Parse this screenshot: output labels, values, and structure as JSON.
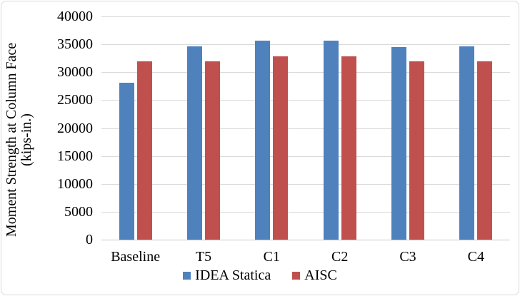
{
  "chart_data": {
    "type": "bar",
    "title": "",
    "categories": [
      "Baseline",
      "T5",
      "C1",
      "C2",
      "C3",
      "C4"
    ],
    "series": [
      {
        "name": "IDEA Statica",
        "color": "#4F81BD",
        "values": [
          28100,
          34600,
          35650,
          35650,
          34500,
          34650
        ]
      },
      {
        "name": "AISC",
        "color": "#C0504D",
        "values": [
          32000,
          32000,
          32900,
          32900,
          32000,
          32000
        ]
      }
    ],
    "xlabel": "",
    "ylabel": "Moment Strength at Column Face (kips-in.)",
    "ylabel_line1": "Moment Strength at Column Face",
    "ylabel_line2": "(kips-in.)",
    "ylim": [
      0,
      40000
    ],
    "ytick_step": 5000,
    "ytick_labels": [
      "0",
      "5000",
      "10000",
      "15000",
      "20000",
      "25000",
      "30000",
      "35000",
      "40000"
    ],
    "grid": true,
    "legend_position": "bottom",
    "colors": {
      "idea_statica_bar": "#4F81BD",
      "aisc_bar": "#C0504D",
      "gridline": "#D9D9D9",
      "axis_line": "#C6C6C6",
      "chart_border": "#D9D9D9",
      "text": "#000000"
    }
  }
}
